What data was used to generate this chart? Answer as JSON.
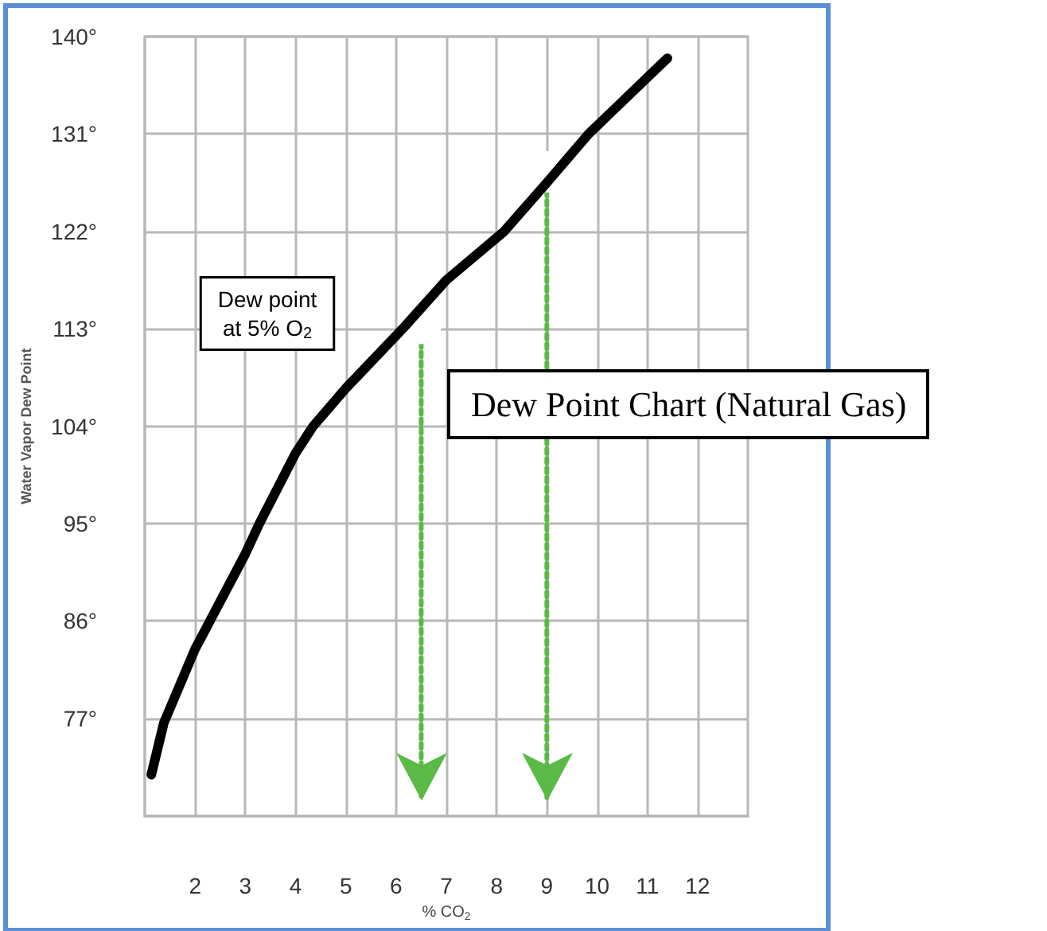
{
  "chart_data": {
    "type": "line",
    "title": "Dew Point Chart (Natural Gas)",
    "xlabel": "% CO$_{2}$",
    "ylabel": "Water Vapor Dew Point",
    "annotations": [
      "Dew point at 5% O$_{2}$"
    ],
    "xlim": [
      1,
      13
    ],
    "xticks": [
      2,
      3,
      4,
      5,
      6,
      7,
      8,
      9,
      10,
      11,
      12
    ],
    "ylim": [
      68,
      140
    ],
    "yticks": [
      {
        "value": 77,
        "label": "77°"
      },
      {
        "value": 86,
        "label": "86°"
      },
      {
        "value": 95,
        "label": "95°"
      },
      {
        "value": 104,
        "label": "104°"
      },
      {
        "value": 113,
        "label": "113°"
      },
      {
        "value": 122,
        "label": "122°"
      },
      {
        "value": 131,
        "label": "131°"
      },
      {
        "value": 140,
        "label": "140°"
      }
    ],
    "grid": true,
    "series": [
      {
        "color": "#000000",
        "x": [
          1.13,
          1.38,
          2,
          3,
          3.28,
          4,
          4.35,
          5,
          6.13,
          7,
          8.15,
          9,
          9.83,
          11.4
        ],
        "values": [
          71.8,
          76.6,
          83.4,
          92.2,
          95,
          101.5,
          104,
          107.5,
          113,
          117.5,
          122,
          126.5,
          131,
          138
        ]
      },
      {
        "color": "#5ab947",
        "line_style": "dotted",
        "x": [
          6.5,
          6.5
        ],
        "values": [
          113.5,
          69.5
        ]
      },
      {
        "color": "#5ab947",
        "line_style": "dotted",
        "x": [
          9,
          9
        ],
        "values": [
          127.5,
          69.5
        ]
      }
    ]
  }
}
